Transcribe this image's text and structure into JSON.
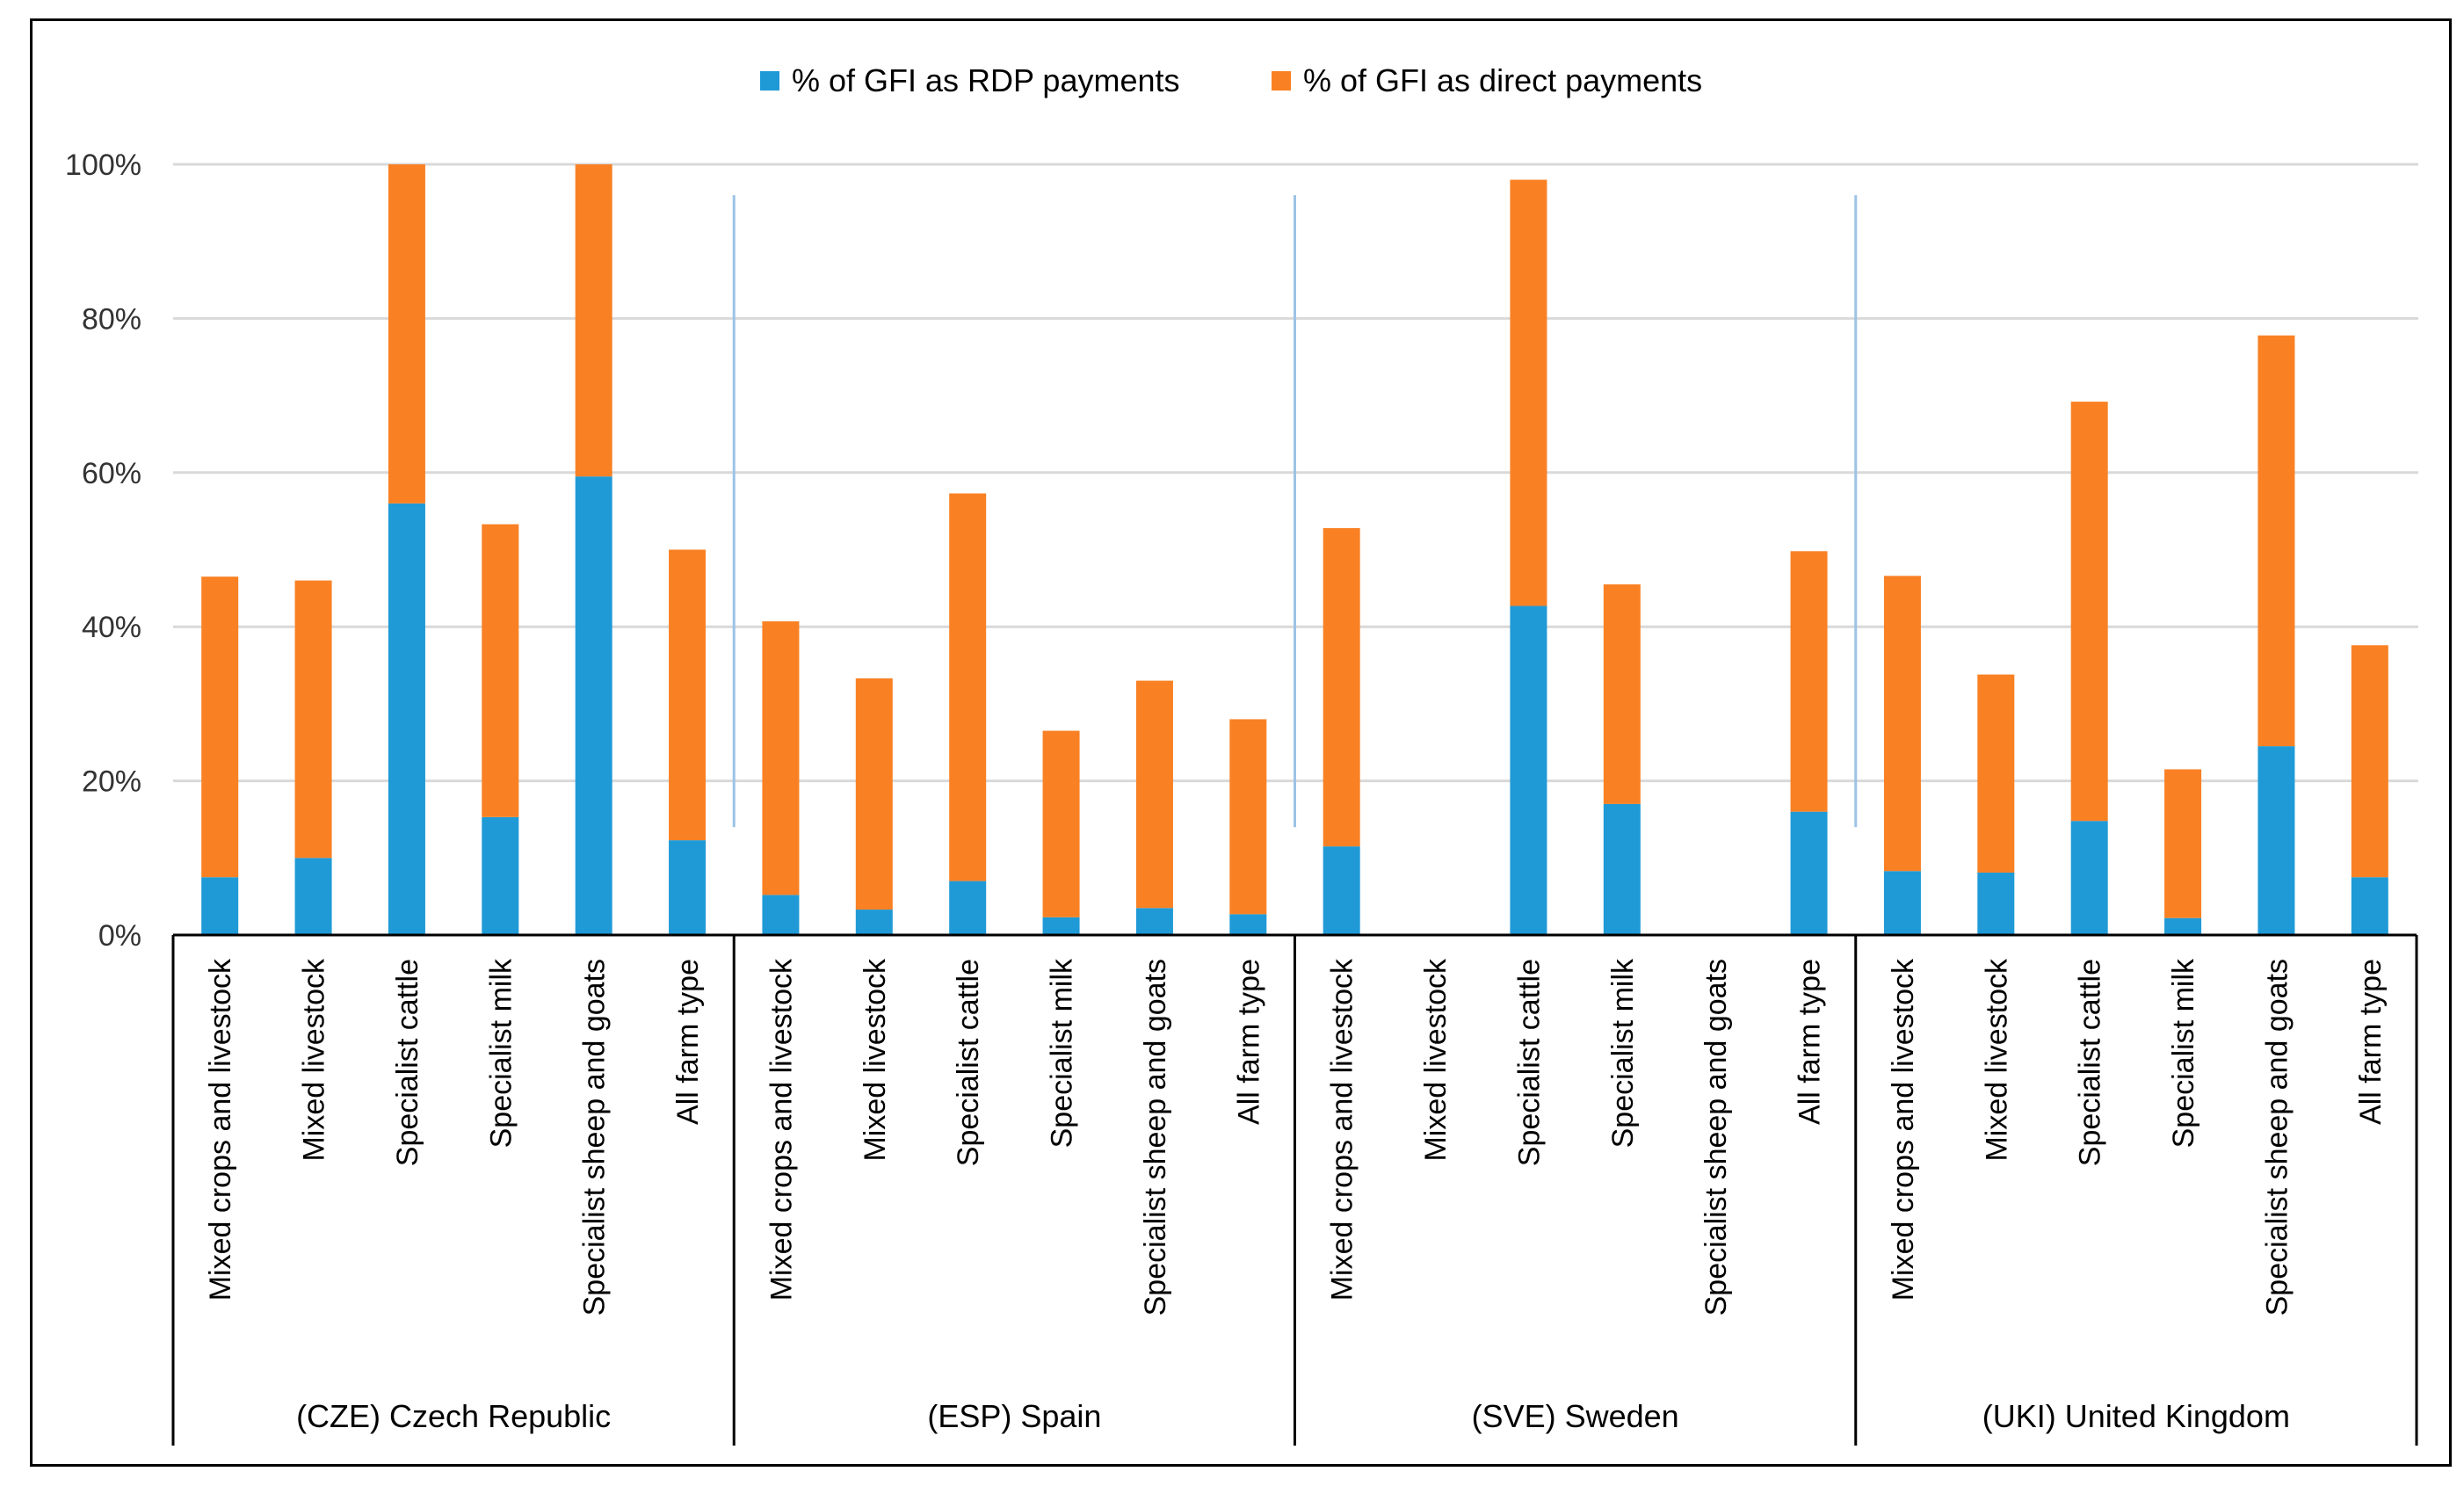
{
  "chart_data": {
    "type": "bar",
    "stacked": true,
    "title": "",
    "xlabel": "",
    "ylabel": "",
    "ylim": [
      0,
      100
    ],
    "y_ticks": [
      "0%",
      "20%",
      "40%",
      "60%",
      "80%",
      "100%"
    ],
    "y_tick_values": [
      0,
      20,
      40,
      60,
      80,
      100
    ],
    "grid": true,
    "legend_position": "top",
    "legend": [
      {
        "name": "% of GFI as RDP payments",
        "color": "#1F9AD6"
      },
      {
        "name": "% of GFI as direct payments",
        "color": "#F98124"
      }
    ],
    "groups": [
      {
        "label": "(CZE) Czech Republic",
        "categories": [
          "Mixed crops and livestock",
          "Mixed livestock",
          "Specialist cattle",
          "Specialist milk",
          "Specialist sheep and goats",
          "All farm type"
        ],
        "rdp": [
          7.5,
          10,
          56,
          15.3,
          59.5,
          12.3
        ],
        "direct": [
          39,
          36,
          44,
          38,
          40.5,
          37.7
        ]
      },
      {
        "label": "(ESP) Spain",
        "categories": [
          "Mixed crops and livestock",
          "Mixed livestock",
          "Specialist cattle",
          "Specialist milk",
          "Specialist sheep and goats",
          "All farm type"
        ],
        "rdp": [
          5.2,
          3.3,
          7,
          2.3,
          3.5,
          2.7
        ],
        "direct": [
          35.5,
          30,
          50.3,
          24.2,
          29.5,
          25.3
        ]
      },
      {
        "label": "(SVE) Sweden",
        "categories": [
          "Mixed crops and livestock",
          "Mixed livestock",
          "Specialist cattle",
          "Specialist milk",
          "Specialist sheep and goats",
          "All farm type"
        ],
        "rdp": [
          11.5,
          0,
          42.7,
          17,
          0,
          16
        ],
        "direct": [
          41.3,
          0,
          55.3,
          28.5,
          0,
          33.8
        ]
      },
      {
        "label": "(UKI) United Kingdom",
        "categories": [
          "Mixed crops and livestock",
          "Mixed livestock",
          "Specialist cattle",
          "Specialist milk",
          "Specialist sheep and goats",
          "All farm type"
        ],
        "rdp": [
          8.3,
          8.1,
          14.8,
          2.2,
          24.5,
          7.5
        ],
        "direct": [
          38.3,
          25.7,
          54.4,
          19.3,
          53.3,
          30.1
        ]
      }
    ]
  }
}
